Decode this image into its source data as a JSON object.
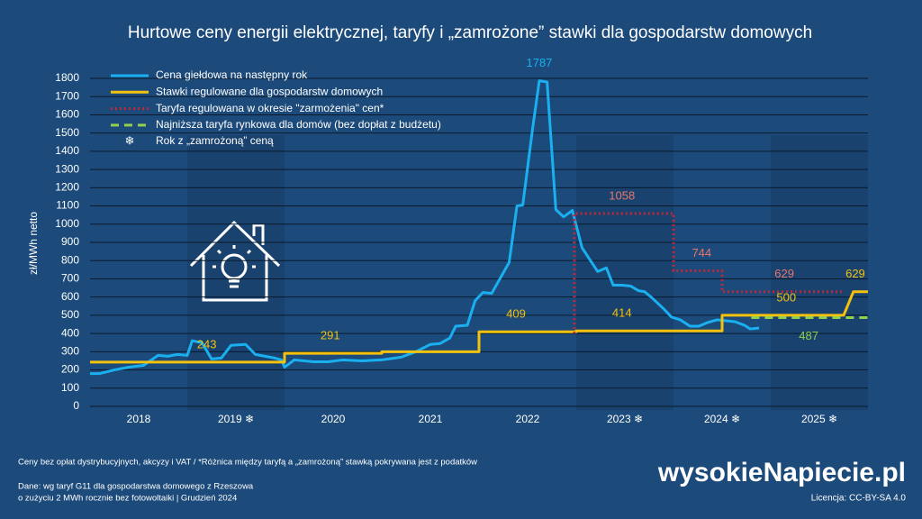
{
  "chart_data": {
    "type": "line",
    "title": "Hurtowe ceny energii elektrycznej, taryfy i „zamrożone” stawki dla gospodarstw domowych",
    "y_label": "zł/MWh netto",
    "xlim": [
      2018,
      2026
    ],
    "xticks": [
      {
        "value": 2018.5,
        "label": "2018"
      },
      {
        "value": 2019.5,
        "label": "2019 ❄"
      },
      {
        "value": 2020.5,
        "label": "2020"
      },
      {
        "value": 2021.5,
        "label": "2021"
      },
      {
        "value": 2022.5,
        "label": "2022"
      },
      {
        "value": 2023.5,
        "label": "2023 ❄"
      },
      {
        "value": 2024.5,
        "label": "2024 ❄"
      },
      {
        "value": 2025.5,
        "label": "2025 ❄"
      }
    ],
    "ylim": [
      0,
      1800
    ],
    "yticks": [
      0,
      100,
      200,
      300,
      400,
      500,
      600,
      700,
      800,
      900,
      1000,
      1100,
      1200,
      1300,
      1400,
      1500,
      1600,
      1700,
      1800
    ],
    "grid": true,
    "series": [
      {
        "name": "Cena giełdowa na następny rok",
        "color": "#1ab0f0",
        "dash": "solid",
        "x": [
          2018.0,
          2018.1,
          2018.25,
          2018.4,
          2018.55,
          2018.7,
          2018.8,
          2018.9,
          2019.0,
          2019.05,
          2019.15,
          2019.25,
          2019.35,
          2019.45,
          2019.6,
          2019.7,
          2019.9,
          2019.97,
          2020.0,
          2020.1,
          2020.3,
          2020.45,
          2020.6,
          2020.8,
          2021.0,
          2021.2,
          2021.35,
          2021.5,
          2021.6,
          2021.7,
          2021.76,
          2021.88,
          2021.96,
          2022.04,
          2022.13,
          2022.31,
          2022.39,
          2022.45,
          2022.55,
          2022.62,
          2022.7,
          2022.79,
          2022.87,
          2022.96,
          2023.06,
          2023.22,
          2023.31,
          2023.38,
          2023.47,
          2023.56,
          2023.64,
          2023.7,
          2023.77,
          2023.89,
          2023.98,
          2024.07,
          2024.17,
          2024.26,
          2024.35,
          2024.45,
          2024.54,
          2024.63,
          2024.73,
          2024.79,
          2024.88
        ],
        "values": [
          180,
          180,
          200,
          215,
          225,
          280,
          275,
          285,
          280,
          360,
          350,
          260,
          265,
          335,
          340,
          285,
          265,
          255,
          215,
          255,
          245,
          245,
          255,
          250,
          255,
          270,
          300,
          340,
          345,
          375,
          440,
          445,
          580,
          625,
          620,
          790,
          1100,
          1105,
          1520,
          1787,
          1780,
          1080,
          1040,
          1075,
          870,
          740,
          760,
          665,
          665,
          660,
          635,
          630,
          600,
          540,
          490,
          475,
          440,
          440,
          460,
          475,
          470,
          465,
          445,
          425,
          430
        ]
      },
      {
        "name": "Stawki regulowane dla gospodarstw domowych",
        "color": "#f4c20d",
        "dash": "solid",
        "x": [
          2018,
          2020,
          2020,
          2021,
          2021,
          2022,
          2022,
          2023,
          2023,
          2024.5,
          2024.5,
          2025.75,
          2025.85,
          2026
        ],
        "values": [
          243,
          243,
          291,
          291,
          300,
          300,
          409,
          409,
          414,
          414,
          500,
          500,
          629,
          629
        ]
      },
      {
        "name": "Taryfa regulowana w okresie \"zarmożenia\" cen*",
        "color": "#c0283a",
        "dash": "dotted",
        "x": [
          2022.98,
          2022.98,
          2024,
          2024,
          2024.5,
          2024.5,
          2025.75
        ],
        "values": [
          400,
          1058,
          1058,
          744,
          744,
          629,
          629
        ]
      },
      {
        "name": "Najniższa taryfa rynkowa dla domów (bez dopłat z budżetu)",
        "color": "#92d050",
        "dash": "dashed",
        "x": [
          2024.8,
          2026
        ],
        "values": [
          487,
          487
        ]
      }
    ],
    "freeze_legend": {
      "icon": "❄",
      "label": "Rok z „zamrożoną” ceną"
    },
    "data_labels": [
      {
        "x": 2022.62,
        "value": 1787,
        "color": "#1ab0f0",
        "placement": "above"
      },
      {
        "x": 2023.47,
        "value": 1058,
        "color": "#e8766b",
        "placement": "above"
      },
      {
        "x": 2024.29,
        "value": 744,
        "color": "#e8766b",
        "placement": "above"
      },
      {
        "x": 2025.14,
        "value": 629,
        "color": "#e8766b",
        "placement": "above"
      },
      {
        "x": 2025.87,
        "value": 629,
        "color": "#f4c20d",
        "placement": "above"
      },
      {
        "x": 2025.16,
        "value": 500,
        "color": "#f4c20d",
        "placement": "above"
      },
      {
        "x": 2025.39,
        "value": 487,
        "color": "#92d050",
        "placement": "below"
      },
      {
        "x": 2023.47,
        "value": 414,
        "color": "#f4c20d",
        "placement": "above"
      },
      {
        "x": 2022.38,
        "value": 409,
        "color": "#f4c20d",
        "placement": "above"
      },
      {
        "x": 2020.47,
        "value": 291,
        "color": "#f4c20d",
        "placement": "above"
      },
      {
        "x": 2019.2,
        "value": 243,
        "color": "#f4c20d",
        "placement": "above"
      }
    ],
    "note": "Ceny bez opłat dystrybucyjnych, akcyzy i VAT  /  *Różnica między taryfą a „zamrożoną” stawką pokrywana jest z podatków",
    "source_lines": [
      "Dane: wg taryf G11 dla gospodarstwa domowego z Rzeszowa",
      "o zużyciu 2 MWh rocznie bez fotowoltaiki  |  Grudzień  2024"
    ],
    "brand": "wysokieNapiecie.pl",
    "license": "Licencja: CC-BY-SA 4.0"
  }
}
